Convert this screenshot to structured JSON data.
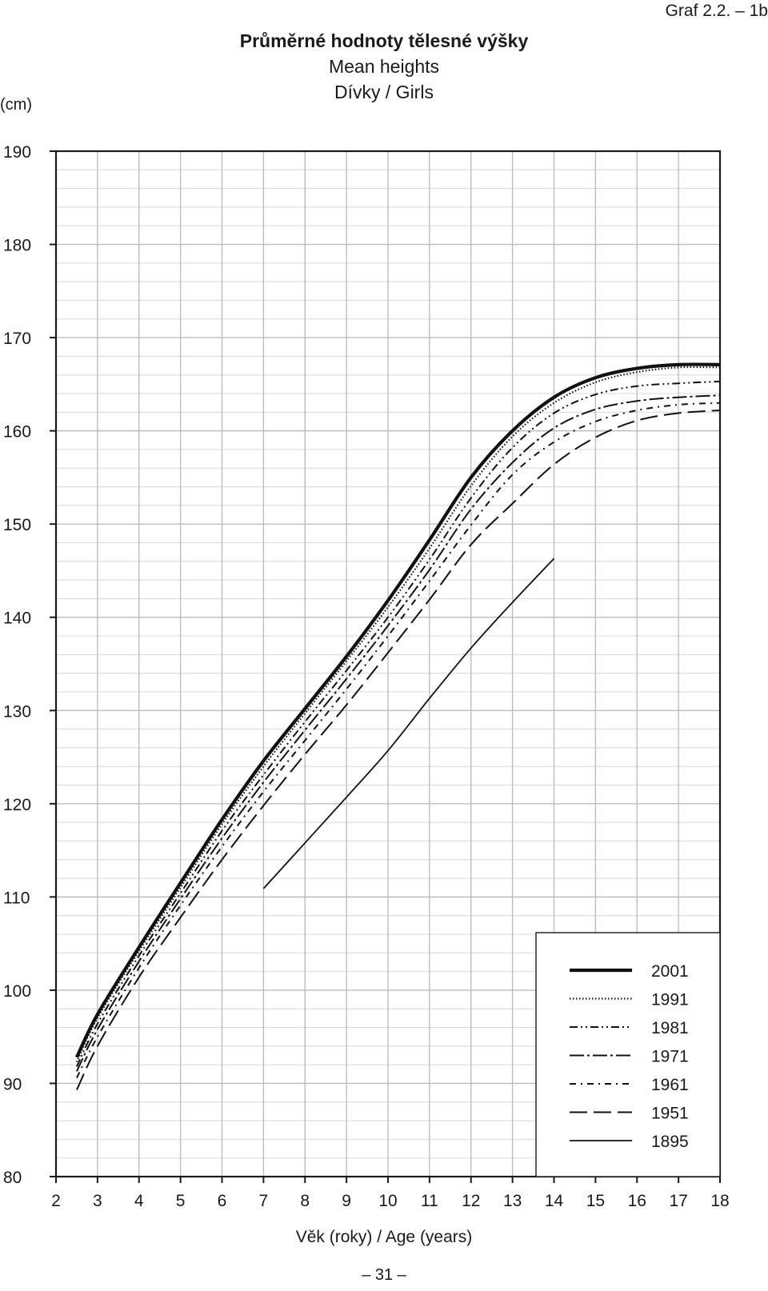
{
  "header": {
    "graph_id": "Graf 2.2. – 1b",
    "title": "Průměrné hodnoty tělesné výšky",
    "subtitle_en": "Mean heights",
    "subtitle_group": "Dívky / Girls",
    "y_unit": "(cm)"
  },
  "footer": {
    "x_axis_label": "Věk (roky) / Age (years)",
    "page_number": "– 31 –"
  },
  "chart_data": {
    "type": "line",
    "title": "Průměrné hodnoty tělesné výšky",
    "xlabel": "Věk (roky) / Age (years)",
    "ylabel": "(cm)",
    "xlim": [
      2,
      18
    ],
    "ylim": [
      80,
      190
    ],
    "x_ticks": [
      2,
      3,
      4,
      5,
      6,
      7,
      8,
      9,
      10,
      11,
      12,
      13,
      14,
      15,
      16,
      17,
      18
    ],
    "y_ticks": [
      80,
      90,
      100,
      110,
      120,
      130,
      140,
      150,
      160,
      170,
      180,
      190
    ],
    "grid": true,
    "legend_position": "bottom-right",
    "series": [
      {
        "name": "2001",
        "style": "solid-thick",
        "x": [
          2.5,
          3,
          4,
          5,
          6,
          7,
          8,
          9,
          10,
          11,
          12,
          13,
          14,
          15,
          16,
          17,
          18
        ],
        "y": [
          92.8,
          97.4,
          104.6,
          111.5,
          118.3,
          124.6,
          130.2,
          135.8,
          141.8,
          148.3,
          155.0,
          160.0,
          163.6,
          165.7,
          166.7,
          167.1,
          167.1
        ]
      },
      {
        "name": "1991",
        "style": "dotted",
        "x": [
          2.5,
          3,
          4,
          5,
          6,
          7,
          8,
          9,
          10,
          11,
          12,
          13,
          14,
          15,
          16,
          17,
          18
        ],
        "y": [
          92.3,
          97.0,
          104.2,
          111.0,
          117.8,
          124.0,
          129.7,
          135.3,
          141.1,
          147.4,
          154.1,
          159.4,
          163.0,
          165.2,
          166.3,
          166.8,
          166.8
        ]
      },
      {
        "name": "1981",
        "style": "dash-dot-dot",
        "x": [
          2.5,
          3,
          4,
          5,
          6,
          7,
          8,
          9,
          10,
          11,
          12,
          13,
          14,
          15,
          16,
          17,
          18
        ],
        "y": [
          91.8,
          96.4,
          103.7,
          110.4,
          117.1,
          123.1,
          128.8,
          134.3,
          140.0,
          146.2,
          152.8,
          158.2,
          161.9,
          163.9,
          164.8,
          165.1,
          165.3
        ]
      },
      {
        "name": "1971",
        "style": "long-dash-dot",
        "x": [
          2.5,
          3,
          4,
          5,
          6,
          7,
          8,
          9,
          10,
          11,
          12,
          13,
          14,
          15,
          16,
          17,
          18
        ],
        "y": [
          91.3,
          95.8,
          103.1,
          109.8,
          116.3,
          122.3,
          127.9,
          133.4,
          139.1,
          145.1,
          151.6,
          156.6,
          160.3,
          162.3,
          163.2,
          163.6,
          163.8
        ]
      },
      {
        "name": "1961",
        "style": "short-dash-dot",
        "x": [
          2.5,
          3,
          4,
          5,
          6,
          7,
          8,
          9,
          10,
          11,
          12,
          13,
          14,
          15,
          16,
          17,
          18
        ],
        "y": [
          90.6,
          95.0,
          102.4,
          109.1,
          115.4,
          121.3,
          126.8,
          132.3,
          138.0,
          143.9,
          149.9,
          155.3,
          158.8,
          161.0,
          162.2,
          162.8,
          163.0
        ]
      },
      {
        "name": "1951",
        "style": "long-dash",
        "x": [
          2.5,
          3,
          4,
          5,
          6,
          7,
          8,
          9,
          10,
          11,
          12,
          13,
          14,
          15,
          16,
          17,
          18
        ],
        "y": [
          89.3,
          94.0,
          101.4,
          107.8,
          114.0,
          119.8,
          125.3,
          130.6,
          136.2,
          141.9,
          147.8,
          152.2,
          156.4,
          159.3,
          161.1,
          161.9,
          162.2
        ]
      },
      {
        "name": "1895",
        "style": "solid-thin",
        "x": [
          7,
          8,
          9,
          10,
          11,
          12,
          13,
          14
        ],
        "y": [
          110.9,
          115.8,
          120.7,
          125.7,
          131.3,
          136.7,
          141.6,
          146.3
        ]
      }
    ]
  }
}
